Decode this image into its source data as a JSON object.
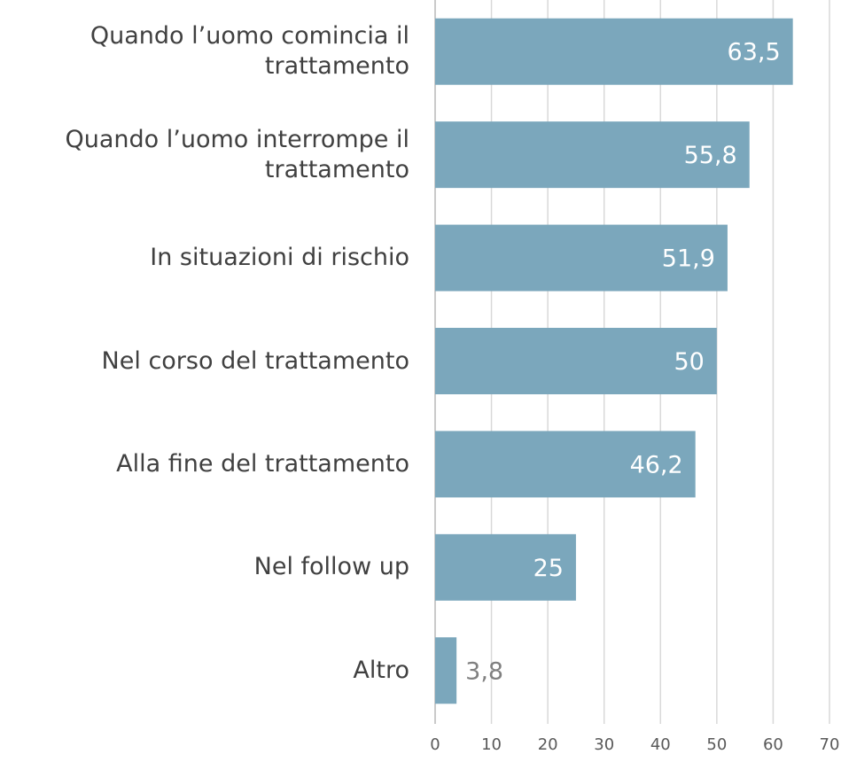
{
  "chart_data": {
    "type": "bar",
    "orientation": "horizontal",
    "categories": [
      "Quando l’uomo comincia il trattamento",
      "Quando l’uomo interrompe il trattamento",
      "In situazioni di rischio",
      "Nel corso del trattamento",
      "Alla fine del trattamento",
      "Nel follow up",
      "Altro"
    ],
    "values": [
      63.5,
      55.8,
      51.9,
      50,
      46.2,
      25,
      3.8
    ],
    "value_labels": [
      "63,5",
      "55,8",
      "51,9",
      "50",
      "46,2",
      "25",
      "3,8"
    ],
    "color": "#7ba7bc",
    "xlim": [
      0,
      70
    ],
    "xticks": [
      0,
      10,
      20,
      30,
      40,
      50,
      60,
      70
    ],
    "grid": true
  }
}
